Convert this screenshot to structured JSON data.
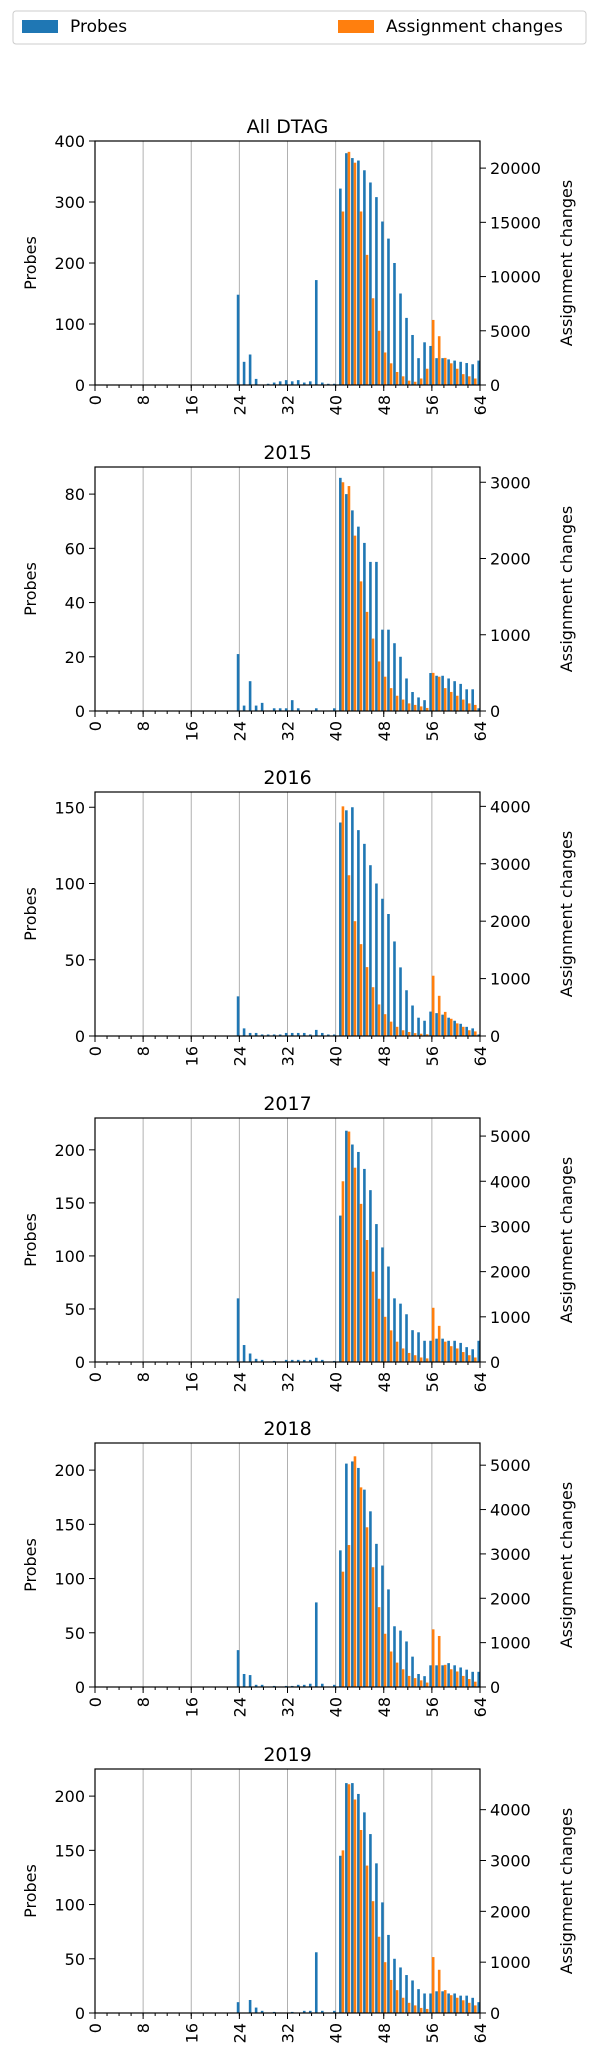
{
  "legend": {
    "placement": "top, spanning the figure width",
    "items": [
      {
        "label": "Probes",
        "color": "#1f77b4"
      },
      {
        "label": "Assignment changes",
        "color": "#ff7f0e"
      }
    ]
  },
  "chart_data": [
    {
      "type": "bar",
      "title": "All DTAG",
      "xlabel": "",
      "ylabel": "Probes",
      "y2label": "Assignment changes",
      "xlim": [
        0,
        64
      ],
      "ylim": [
        0,
        400
      ],
      "y2lim": [
        0,
        22500
      ],
      "xticks": [
        0,
        8,
        16,
        24,
        32,
        40,
        48,
        56,
        64
      ],
      "yticks": [
        0,
        100,
        200,
        300,
        400
      ],
      "y2ticks": [
        0,
        5000,
        10000,
        15000,
        20000
      ],
      "grid": "vertical",
      "series": [
        {
          "name": "Probes",
          "axis": "left",
          "color": "#1f77b4",
          "x": [
            24,
            25,
            26,
            27,
            29,
            30,
            31,
            32,
            33,
            34,
            35,
            36,
            37,
            38,
            39,
            40,
            41,
            42,
            43,
            44,
            45,
            46,
            47,
            48,
            49,
            50,
            51,
            52,
            53,
            54,
            55,
            56,
            57,
            58,
            59,
            60,
            61,
            62,
            63,
            64
          ],
          "values": [
            148,
            38,
            50,
            10,
            2,
            4,
            6,
            8,
            6,
            8,
            4,
            6,
            172,
            4,
            2,
            2,
            322,
            380,
            372,
            368,
            352,
            332,
            308,
            268,
            240,
            200,
            150,
            110,
            82,
            44,
            70,
            64,
            44,
            44,
            42,
            40,
            38,
            36,
            34,
            40
          ]
        },
        {
          "name": "Assignment changes",
          "axis": "right",
          "color": "#ff7f0e",
          "x": [
            41,
            42,
            43,
            44,
            45,
            46,
            47,
            48,
            49,
            50,
            51,
            52,
            53,
            54,
            55,
            56,
            57,
            58,
            59,
            60,
            61,
            62,
            63
          ],
          "values": [
            16000,
            21500,
            20500,
            16000,
            12000,
            8000,
            5000,
            3000,
            2000,
            1200,
            800,
            400,
            300,
            600,
            1500,
            6000,
            4500,
            2500,
            2000,
            1500,
            1000,
            800,
            600
          ]
        }
      ]
    },
    {
      "type": "bar",
      "title": "2015",
      "xlabel": "",
      "ylabel": "Probes",
      "y2label": "Assignment changes",
      "xlim": [
        0,
        64
      ],
      "ylim": [
        0,
        90
      ],
      "y2lim": [
        0,
        3200
      ],
      "xticks": [
        0,
        8,
        16,
        24,
        32,
        40,
        48,
        56,
        64
      ],
      "yticks": [
        0,
        20,
        40,
        60,
        80
      ],
      "y2ticks": [
        0,
        1000,
        2000,
        3000
      ],
      "grid": "vertical",
      "series": [
        {
          "name": "Probes",
          "axis": "left",
          "color": "#1f77b4",
          "x": [
            24,
            25,
            26,
            27,
            28,
            30,
            31,
            32,
            33,
            34,
            37,
            40,
            41,
            42,
            43,
            44,
            45,
            46,
            47,
            48,
            49,
            50,
            51,
            52,
            53,
            54,
            55,
            56,
            57,
            58,
            59,
            60,
            61,
            62,
            63,
            64
          ],
          "values": [
            21,
            2,
            11,
            2,
            3,
            1,
            1,
            1,
            4,
            1,
            1,
            1,
            86,
            80,
            74,
            68,
            62,
            55,
            55,
            30,
            30,
            25,
            20,
            12,
            7,
            5,
            4,
            14,
            13,
            13,
            12,
            11,
            10,
            8,
            8,
            1
          ]
        },
        {
          "name": "Assignment changes",
          "axis": "right",
          "color": "#ff7f0e",
          "x": [
            41,
            42,
            43,
            44,
            45,
            46,
            47,
            48,
            49,
            50,
            51,
            52,
            53,
            54,
            55,
            56,
            57,
            58,
            59,
            60,
            61,
            62,
            63
          ],
          "values": [
            3000,
            2950,
            2300,
            1700,
            1300,
            950,
            650,
            450,
            300,
            200,
            150,
            100,
            80,
            60,
            40,
            500,
            450,
            300,
            250,
            200,
            150,
            100,
            80
          ]
        }
      ]
    },
    {
      "type": "bar",
      "title": "2016",
      "xlabel": "",
      "ylabel": "Probes",
      "y2label": "Assignment changes",
      "xlim": [
        0,
        64
      ],
      "ylim": [
        0,
        160
      ],
      "y2lim": [
        0,
        4250
      ],
      "xticks": [
        0,
        8,
        16,
        24,
        32,
        40,
        48,
        56,
        64
      ],
      "yticks": [
        0,
        50,
        100,
        150
      ],
      "y2ticks": [
        0,
        1000,
        2000,
        3000,
        4000
      ],
      "grid": "vertical",
      "series": [
        {
          "name": "Probes",
          "axis": "left",
          "color": "#1f77b4",
          "x": [
            24,
            25,
            26,
            27,
            28,
            29,
            30,
            31,
            32,
            33,
            34,
            35,
            36,
            37,
            38,
            39,
            40,
            41,
            42,
            43,
            44,
            45,
            46,
            47,
            48,
            49,
            50,
            51,
            52,
            53,
            54,
            55,
            56,
            57,
            58,
            59,
            60,
            61,
            62,
            63,
            64
          ],
          "values": [
            26,
            5,
            2,
            2,
            1,
            1,
            1,
            1,
            2,
            2,
            2,
            2,
            1,
            4,
            2,
            1,
            1,
            140,
            148,
            150,
            135,
            126,
            112,
            100,
            90,
            80,
            62,
            45,
            30,
            20,
            12,
            10,
            16,
            15,
            14,
            12,
            10,
            8,
            6,
            5,
            1
          ]
        },
        {
          "name": "Assignment changes",
          "axis": "right",
          "color": "#ff7f0e",
          "x": [
            41,
            42,
            43,
            44,
            45,
            46,
            47,
            48,
            49,
            50,
            51,
            52,
            53,
            54,
            55,
            56,
            57,
            58,
            59,
            60,
            61,
            62,
            63
          ],
          "values": [
            4000,
            2800,
            2000,
            1600,
            1200,
            850,
            550,
            380,
            250,
            160,
            100,
            70,
            50,
            40,
            30,
            1050,
            700,
            420,
            300,
            220,
            160,
            100,
            80
          ]
        }
      ]
    },
    {
      "type": "bar",
      "title": "2017",
      "xlabel": "",
      "ylabel": "Probes",
      "y2label": "Assignment changes",
      "xlim": [
        0,
        64
      ],
      "ylim": [
        0,
        230
      ],
      "y2lim": [
        0,
        5400
      ],
      "xticks": [
        0,
        8,
        16,
        24,
        32,
        40,
        48,
        56,
        64
      ],
      "yticks": [
        0,
        50,
        100,
        150,
        200
      ],
      "y2ticks": [
        0,
        1000,
        2000,
        3000,
        4000,
        5000
      ],
      "grid": "vertical",
      "series": [
        {
          "name": "Probes",
          "axis": "left",
          "color": "#1f77b4",
          "x": [
            24,
            25,
            26,
            27,
            28,
            30,
            32,
            33,
            34,
            35,
            36,
            37,
            38,
            40,
            41,
            42,
            43,
            44,
            45,
            46,
            47,
            48,
            49,
            50,
            51,
            52,
            53,
            54,
            55,
            56,
            57,
            58,
            59,
            60,
            61,
            62,
            63,
            64
          ],
          "values": [
            60,
            16,
            8,
            3,
            2,
            1,
            2,
            2,
            2,
            2,
            2,
            4,
            2,
            1,
            138,
            218,
            205,
            198,
            182,
            162,
            130,
            108,
            90,
            60,
            55,
            45,
            30,
            28,
            20,
            20,
            22,
            22,
            20,
            20,
            18,
            14,
            12,
            20
          ]
        },
        {
          "name": "Assignment changes",
          "axis": "right",
          "color": "#ff7f0e",
          "x": [
            41,
            42,
            43,
            44,
            45,
            46,
            47,
            48,
            49,
            50,
            51,
            52,
            53,
            54,
            55,
            56,
            57,
            58,
            59,
            60,
            61,
            62,
            63
          ],
          "values": [
            4000,
            5100,
            4300,
            3500,
            2700,
            2000,
            1400,
            1000,
            700,
            450,
            300,
            200,
            150,
            100,
            80,
            1200,
            800,
            450,
            350,
            300,
            220,
            150,
            100
          ]
        }
      ]
    },
    {
      "type": "bar",
      "title": "2018",
      "xlabel": "",
      "ylabel": "Probes",
      "y2label": "Assignment changes",
      "xlim": [
        0,
        64
      ],
      "ylim": [
        0,
        225
      ],
      "y2lim": [
        0,
        5500
      ],
      "xticks": [
        0,
        8,
        16,
        24,
        32,
        40,
        48,
        56,
        64
      ],
      "yticks": [
        0,
        50,
        100,
        150,
        200
      ],
      "y2ticks": [
        0,
        1000,
        2000,
        3000,
        4000,
        5000
      ],
      "grid": "vertical",
      "series": [
        {
          "name": "Probes",
          "axis": "left",
          "color": "#1f77b4",
          "x": [
            24,
            25,
            26,
            27,
            28,
            30,
            32,
            33,
            34,
            35,
            36,
            37,
            38,
            40,
            41,
            42,
            43,
            44,
            45,
            46,
            47,
            48,
            49,
            50,
            51,
            52,
            53,
            54,
            55,
            56,
            57,
            58,
            59,
            60,
            61,
            62,
            63,
            64
          ],
          "values": [
            34,
            12,
            11,
            2,
            2,
            1,
            1,
            1,
            2,
            2,
            3,
            78,
            3,
            2,
            126,
            206,
            208,
            202,
            182,
            162,
            132,
            112,
            90,
            56,
            52,
            42,
            28,
            12,
            10,
            20,
            20,
            20,
            22,
            20,
            18,
            16,
            14,
            14
          ]
        },
        {
          "name": "Assignment changes",
          "axis": "right",
          "color": "#ff7f0e",
          "x": [
            41,
            42,
            43,
            44,
            45,
            46,
            47,
            48,
            49,
            50,
            51,
            52,
            53,
            54,
            55,
            56,
            57,
            58,
            59,
            60,
            61,
            62,
            63
          ],
          "values": [
            2600,
            3200,
            5200,
            4500,
            3600,
            2700,
            1800,
            1200,
            800,
            550,
            400,
            250,
            200,
            150,
            100,
            1300,
            1150,
            500,
            400,
            350,
            250,
            180,
            120
          ]
        }
      ]
    },
    {
      "type": "bar",
      "title": "2019",
      "xlabel": "",
      "ylabel": "Probes",
      "y2label": "Assignment changes",
      "xlim": [
        0,
        64
      ],
      "ylim": [
        0,
        225
      ],
      "y2lim": [
        0,
        4800
      ],
      "xticks": [
        0,
        8,
        16,
        24,
        32,
        40,
        48,
        56,
        64
      ],
      "yticks": [
        0,
        50,
        100,
        150,
        200
      ],
      "y2ticks": [
        0,
        1000,
        2000,
        3000,
        4000
      ],
      "grid": "vertical",
      "series": [
        {
          "name": "Probes",
          "axis": "left",
          "color": "#1f77b4",
          "x": [
            24,
            26,
            27,
            28,
            30,
            33,
            35,
            36,
            37,
            38,
            40,
            41,
            42,
            43,
            44,
            45,
            46,
            47,
            48,
            49,
            50,
            51,
            52,
            53,
            54,
            55,
            56,
            57,
            58,
            59,
            60,
            61,
            62,
            63,
            64
          ],
          "values": [
            10,
            12,
            5,
            2,
            1,
            1,
            2,
            2,
            56,
            2,
            2,
            145,
            212,
            212,
            202,
            185,
            165,
            138,
            102,
            72,
            50,
            42,
            35,
            30,
            22,
            18,
            18,
            20,
            20,
            18,
            18,
            16,
            16,
            14,
            10
          ]
        },
        {
          "name": "Assignment changes",
          "axis": "right",
          "color": "#ff7f0e",
          "x": [
            41,
            42,
            43,
            44,
            45,
            46,
            47,
            48,
            49,
            50,
            51,
            52,
            53,
            54,
            55,
            56,
            57,
            58,
            59,
            60,
            61,
            62,
            63
          ],
          "values": [
            3200,
            4500,
            4200,
            3600,
            2900,
            2200,
            1500,
            1000,
            650,
            450,
            300,
            200,
            150,
            100,
            80,
            1100,
            850,
            450,
            350,
            300,
            250,
            200,
            150
          ]
        }
      ]
    }
  ]
}
